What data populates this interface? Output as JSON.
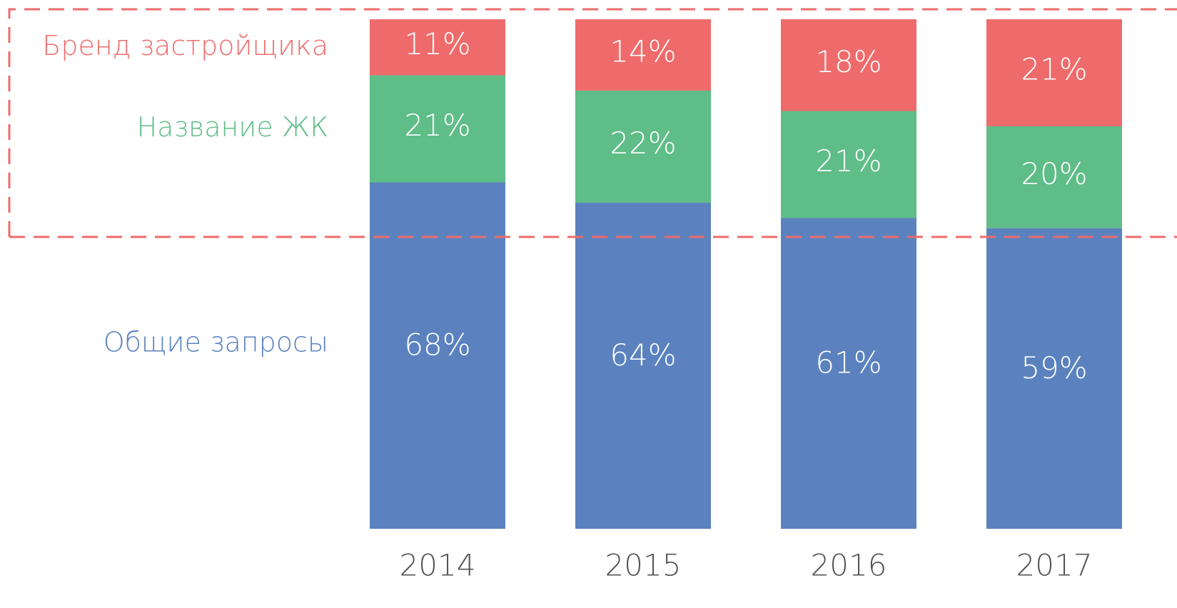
{
  "chart_data": {
    "type": "stacked_bar",
    "categories": [
      "2014",
      "2015",
      "2016",
      "2017"
    ],
    "series": [
      {
        "name": "Общие запросы",
        "color": "#5b82bf",
        "values": [
          68,
          64,
          61,
          59
        ],
        "value_labels": [
          "68%",
          "64%",
          "61%",
          "59%"
        ]
      },
      {
        "name": "Название ЖК",
        "color": "#5fbd88",
        "values": [
          21,
          22,
          21,
          20
        ],
        "value_labels": [
          "21%",
          "22%",
          "21%",
          "20%"
        ]
      },
      {
        "name": "Бренд застройщика",
        "color": "#ef6b6b",
        "values": [
          11,
          14,
          18,
          21
        ],
        "value_labels": [
          "11%",
          "14%",
          "18%",
          "21%"
        ]
      }
    ]
  }
}
